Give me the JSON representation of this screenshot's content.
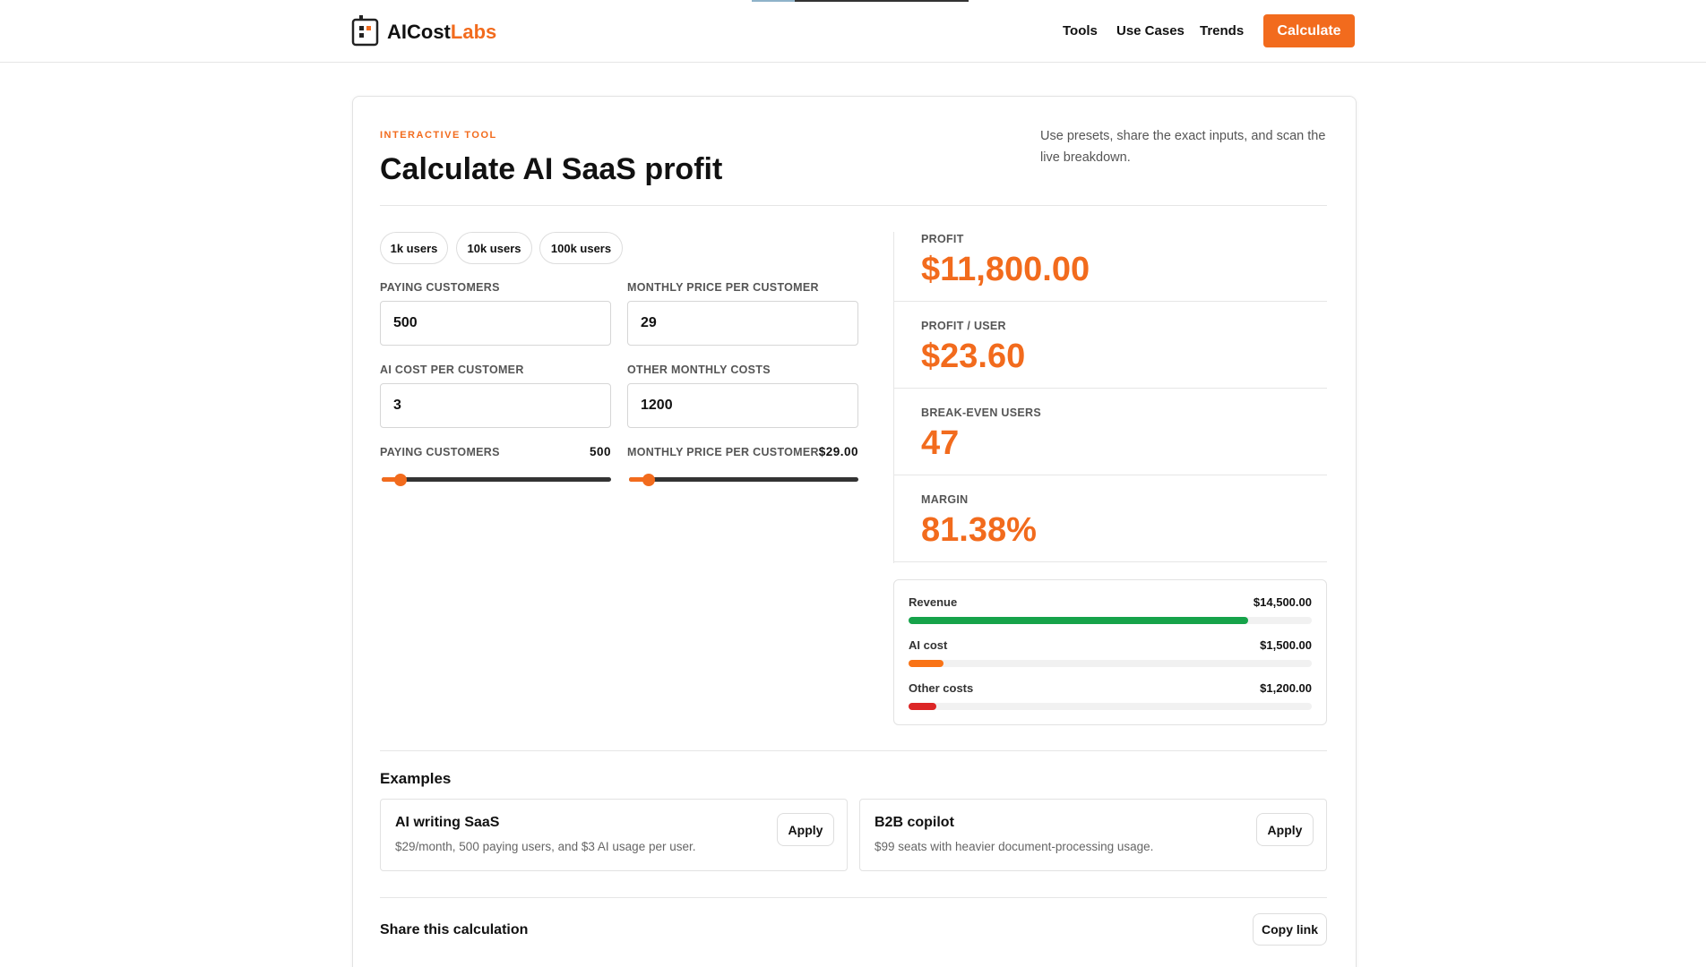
{
  "header": {
    "logo": {
      "text": "AICost",
      "accent": "Labs"
    },
    "nav": [
      "Tools",
      "Use Cases",
      "Trends"
    ],
    "cta": "Calculate"
  },
  "tool": {
    "eyebrow": "INTERACTIVE TOOL",
    "title": "Calculate AI SaaS profit",
    "description": "Use presets, share the exact inputs, and scan the live breakdown.",
    "presets": [
      "1k users",
      "10k users",
      "100k users"
    ],
    "inputs": [
      {
        "label": "PAYING CUSTOMERS",
        "value": "500"
      },
      {
        "label": "MONTHLY PRICE PER CUSTOMER",
        "value": "29"
      },
      {
        "label": "AI COST PER CUSTOMER",
        "value": "3"
      },
      {
        "label": "OTHER MONTHLY COSTS",
        "value": "1200"
      }
    ],
    "sliders": [
      {
        "label": "PAYING CUSTOMERS",
        "value": "500"
      },
      {
        "label": "MONTHLY PRICE PER CUSTOMER",
        "value": "$29.00"
      }
    ],
    "results": [
      {
        "label": "PROFIT",
        "value": "$11,800.00"
      },
      {
        "label": "PROFIT / USER",
        "value": "$23.60"
      },
      {
        "label": "BREAK-EVEN USERS",
        "value": "47"
      },
      {
        "label": "MARGIN",
        "value": "81.38%"
      }
    ],
    "breakdown": [
      {
        "label": "Revenue",
        "value": 14500,
        "value_label": "$14,500.00",
        "color": "#16a34a"
      },
      {
        "label": "AI cost",
        "value": 1500,
        "value_label": "$1,500.00",
        "color": "#f97316"
      },
      {
        "label": "Other costs",
        "value": 1200,
        "value_label": "$1,200.00",
        "color": "#dc2626"
      }
    ]
  },
  "examples": {
    "title": "Examples",
    "items": [
      {
        "title": "AI writing SaaS",
        "description": "$29/month, 500 paying users, and $3 AI usage per user.",
        "action": "Apply"
      },
      {
        "title": "B2B copilot",
        "description": "$99 seats with heavier document-processing usage.",
        "action": "Apply"
      }
    ]
  },
  "share": {
    "title": "Share this calculation",
    "action": "Copy link"
  }
}
